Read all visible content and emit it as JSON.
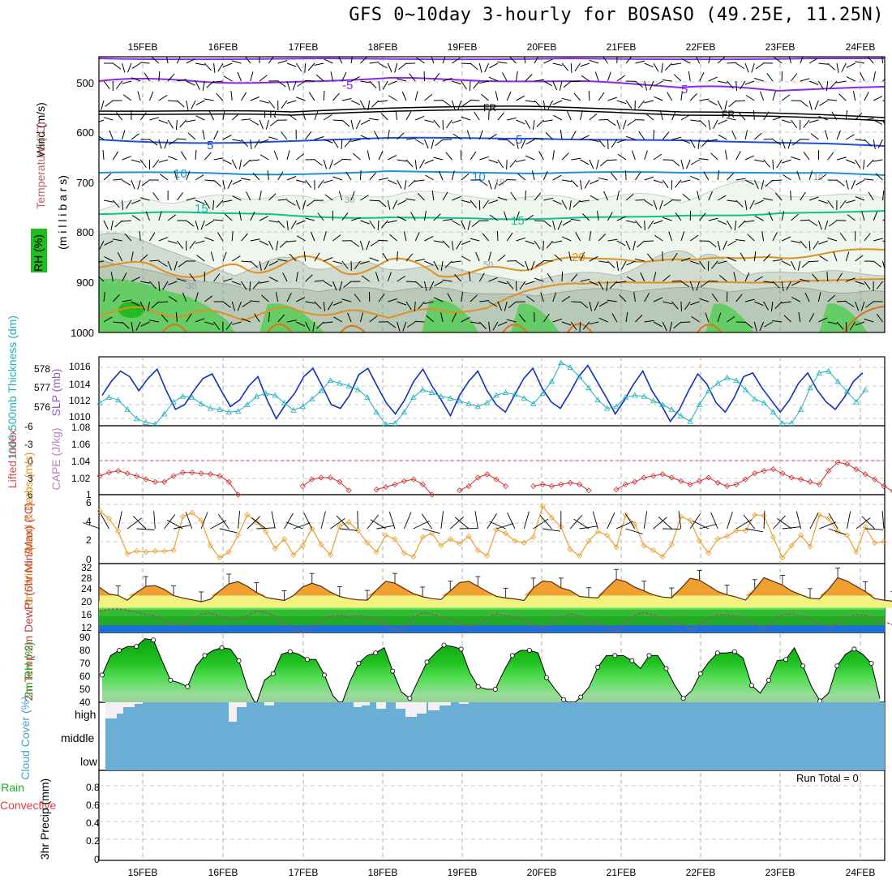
{
  "title": "GFS 0~10day 3-hourly for BOSASO (49.25E, 11.25N)",
  "colors": {
    "temp_purple": "#8a2be2",
    "temp_black": "#000000",
    "temp_blue": "#1f4fd8",
    "temp_lightblue": "#1e90d8",
    "temp_teal": "#10c090",
    "temp_orange": "#e09020",
    "rh_light": "#e6f2e6",
    "rh_gray": "#b8c8b8",
    "rh_green": "#66cc66",
    "slp_blue": "#1030c0",
    "thick_cyan": "#20b0c0",
    "cape_red": "#d03030",
    "wind_orange": "#e8a030",
    "cloud_blue": "#6aaed6",
    "rh2m_green": "#22bb22"
  },
  "chart_data": [
    {
      "type": "contour",
      "name": "upper-air",
      "days": [
        "15FEB",
        "16FEB",
        "17FEB",
        "18FEB",
        "19FEB",
        "20FEB",
        "21FEB",
        "22FEB",
        "23FEB",
        "24FEB"
      ],
      "ylabel_parts": [
        "Wind (m/s)",
        "Temperature (°C)",
        "RH (%)",
        "(m i l l i b a r s)"
      ],
      "y_ticks": [
        500,
        600,
        700,
        800,
        900,
        1000
      ],
      "ylim": [
        450,
        1000
      ],
      "contour_labels": [
        "-5",
        "5",
        "FR",
        "FR",
        "FR",
        "5",
        "5",
        "10",
        "10",
        "15",
        "15",
        "20",
        "30",
        "10",
        "10",
        "30",
        "50"
      ]
    },
    {
      "type": "line",
      "name": "slp-thickness",
      "ylabel_left": "1000-500mb Thickness (dm)",
      "ylabel_right": "SLP (mb)",
      "left_ticks": [
        "578",
        "577",
        "576"
      ],
      "right_ticks": [
        "1016",
        "1014",
        "1012",
        "1010"
      ],
      "series": [
        {
          "name": "SLP (mb)",
          "values": [
            1013,
            1014.5,
            1015.6,
            1015,
            1013.5,
            1014.8,
            1015.8,
            1013.5,
            1011.5,
            1012,
            1013.5,
            1014.8,
            1015.3,
            1013.5,
            1011.8,
            1012.5,
            1014,
            1015,
            1012.5,
            1010.5,
            1012,
            1013.2,
            1015,
            1015.9,
            1014,
            1012,
            1011.6,
            1013,
            1015.2,
            1015.9,
            1014,
            1012.2,
            1011,
            1012.5,
            1014.5,
            1015.8,
            1014,
            1012.5,
            1010.8,
            1013,
            1014.5,
            1015.6,
            1013.5,
            1012,
            1011.2,
            1013,
            1014.8,
            1015.9,
            1013.8,
            1012.3,
            1011.6,
            1013.2,
            1015,
            1016.2,
            1014.5,
            1012.8,
            1011,
            1012.5,
            1014.2,
            1015.6,
            1013.5,
            1012,
            1010.2,
            1011.5,
            1013.5,
            1015.3,
            1014.2,
            1012.2,
            1011.2,
            1012.8,
            1015,
            1015.4,
            1013.8,
            1012.5,
            1011.2,
            1012.5,
            1014.3,
            1015.4,
            1013.6,
            1012.3,
            1011.5,
            1012.8,
            1014.5,
            1015.4
          ]
        },
        {
          "name": "1000-500mb Thickness (dm)",
          "values": [
            1012.2,
            1012.8,
            1012.5,
            1011.5,
            1010.5,
            1010.1,
            1009.9,
            1011.0,
            1012.3,
            1012.9,
            1012.8,
            1012.1,
            1011.6,
            1011.5,
            1011.2,
            1011.3,
            1012.0,
            1012.9,
            1013.2,
            1013.0,
            1012.2,
            1011.4,
            1011.8,
            1012.6,
            1013.5,
            1014.6,
            1014.3,
            1014.0,
            1013.6,
            1012.8,
            1011.2,
            1009.9,
            1010.0,
            1011.2,
            1012.8,
            1013.6,
            1013.3,
            1012.9,
            1012.7,
            1012.4,
            1012.1,
            1011.8,
            1012.2,
            1013.0,
            1013.3,
            1013.1,
            1012.7,
            1012.1,
            1013.2,
            1014.5,
            1016.5,
            1016.0,
            1015.0,
            1013.8,
            1012.5,
            1011.6,
            1011.8,
            1012.8,
            1013.0,
            1012.9,
            1012.4,
            1012.0,
            1011.5,
            1010.8,
            1010.2,
            1012.0,
            1013.5,
            1014.3,
            1014.9,
            1014.6,
            1013.6,
            1012.6,
            1012.2,
            1011.2,
            1010.0,
            1010.0,
            1011.5,
            1013.8,
            1015.4,
            1015.6,
            1014.5,
            1013.4,
            1012.3,
            1013.6
          ]
        }
      ]
    },
    {
      "type": "line",
      "name": "lifted-cape",
      "ylabel_left": "Lifted Index",
      "ylabel_right": "CAPE (J/kg)",
      "left_ticks": [
        "-6",
        "-3",
        "0",
        "3",
        "6"
      ],
      "right_ticks": [
        "1.08",
        "1.06",
        "1.04",
        "1.02",
        "1"
      ],
      "series": [
        {
          "name": "Lifted Index",
          "values": [
            1.022,
            1.026,
            1.028,
            1.025,
            1.022,
            1.018,
            1.015,
            1.015,
            1.022,
            1.026,
            1.026,
            1.025,
            1.024,
            1.022,
            1.015,
            1.0,
            null,
            null,
            null,
            null,
            null,
            null,
            1.01,
            1.018,
            1.02,
            1.02,
            1.015,
            1.005,
            null,
            null,
            1.006,
            1.009,
            1.012,
            1.016,
            1.018,
            1.012,
            1.0,
            null,
            null,
            1.005,
            1.01,
            1.02,
            1.024,
            1.018,
            1.01,
            null,
            null,
            1.01,
            1.012,
            1.01,
            1.012,
            1.014,
            1.012,
            1.005,
            null,
            null,
            1.006,
            1.012,
            1.015,
            1.02,
            1.022,
            1.024,
            1.02,
            1.016,
            1.012,
            1.016,
            1.02,
            1.014,
            1.01,
            1.012,
            1.018,
            1.025,
            1.028,
            1.03,
            1.025,
            1.02,
            1.018,
            1.015,
            1.012,
            1.028,
            1.038,
            1.036,
            1.03,
            1.024,
            1.018,
            1.01,
            1.004,
            1.002,
            1.004
          ]
        }
      ]
    },
    {
      "type": "line",
      "name": "wind10m",
      "ylabel": "10m Wind Speed & Barbs (m/s)",
      "y_ticks": [
        "6",
        "4",
        "2",
        "0"
      ],
      "series": [
        {
          "name": "10m Wind Speed (m/s)",
          "values": [
            5.2,
            4.4,
            3.0,
            0.6,
            0.9,
            0.8,
            0.9,
            0.9,
            1.0,
            4.6,
            5.0,
            4.2,
            1.5,
            0.2,
            0.8,
            2.6,
            4.8,
            4.0,
            3.0,
            1.2,
            2.2,
            0.5,
            1.5,
            3.3,
            1.6,
            0.5,
            3.6,
            4.0,
            3.1,
            1.8,
            0.8,
            2.6,
            2.2,
            0.7,
            0.3,
            2.4,
            2.8,
            1.5,
            2.2,
            1.7,
            2.5,
            1.0,
            0.4,
            3.2,
            2.8,
            2.0,
            1.8,
            2.4,
            5.7,
            4.5,
            3.5,
            1.1,
            0.4,
            2.0,
            3.0,
            2.6,
            1.3,
            4.8,
            3.8,
            1.5,
            1.0,
            0.3,
            1.6,
            4.6,
            4.2,
            2.0,
            0.7,
            2.2,
            2.5,
            3.1,
            3.1,
            4.8,
            4.7,
            2.4,
            0.2,
            1.5,
            2.6,
            1.4,
            4.8,
            4.4,
            3.0,
            2.6,
            0.8,
            3.5,
            1.8,
            1.9
          ]
        }
      ]
    },
    {
      "type": "area",
      "name": "temp2m",
      "ylabel": "2m Temp 2m DewPt (6hr Min/Max) (°C)",
      "y_ticks": [
        "32",
        "28",
        "24",
        "20",
        "16",
        "12"
      ],
      "series": [
        {
          "name": "2m Temp",
          "values": [
            26.6,
            24.5,
            24,
            22.5,
            25,
            27,
            27.2,
            26,
            24,
            23.2,
            22.6,
            22,
            22.8,
            25.5,
            27.8,
            28.5,
            27,
            25,
            23.4,
            22.9,
            22.4,
            24,
            26.8,
            28,
            27,
            25.1,
            23.7,
            23,
            22.6,
            22.5,
            25.8,
            28.6,
            28,
            26.3,
            24.6,
            23.6,
            23,
            22.7,
            25.5,
            28.2,
            28.6,
            27,
            25.3,
            23.7,
            23.2,
            22.9,
            22.4,
            26.5,
            28.7,
            28.4,
            26.5,
            25.6,
            23.7,
            23.4,
            23.2,
            26.5,
            29.3,
            28.5,
            26.7,
            25.5,
            24.2,
            23.5,
            23.3,
            26.3,
            29.6,
            29,
            27.2,
            25.3,
            24.2,
            23.5,
            22.5,
            26,
            29.8,
            28.6,
            27.4,
            25.5,
            24.2,
            23.1,
            22.9,
            26,
            29.8,
            28.7,
            27,
            25.3,
            23,
            22.5,
            22.1,
            27.2
          ]
        },
        {
          "name": "2m DewPt",
          "values": [
            19,
            19.5,
            19.6,
            19.3,
            18.6,
            17.9,
            17.2,
            15.8,
            14.8,
            14.6,
            15.8,
            18,
            18.3,
            17.2,
            16.5,
            16,
            17.5,
            19,
            18.5,
            17.3,
            15,
            13.3,
            11.8,
            13.8,
            16,
            17.2,
            17.5,
            17,
            17.4,
            17,
            16.2,
            15,
            12.8,
            13.5,
            16.7,
            18.5,
            18,
            17,
            16.2,
            15,
            14,
            14.5,
            16.6,
            18,
            17.5,
            17,
            16,
            14.5,
            13.5,
            15.5,
            16.9,
            18,
            17.4,
            15.8,
            15,
            13.7,
            12.4,
            15.5,
            17.6,
            18.5,
            17.6,
            16.7,
            15.5,
            15,
            13,
            14.6,
            16.6,
            17.8,
            17.6,
            17.2,
            16.3,
            15,
            13,
            15.5,
            17.8,
            18.2,
            17.3,
            16.5,
            15,
            14,
            14.8,
            16.8,
            17.8,
            17.5,
            16.2,
            15.5,
            14.5,
            13
          ]
        }
      ]
    },
    {
      "type": "area",
      "name": "rh2m",
      "ylabel": "2m RH (%)",
      "y_ticks": [
        "90",
        "80",
        "70",
        "60",
        "50",
        "40"
      ],
      "series": [
        {
          "name": "2m RH",
          "values": [
            61,
            76,
            80,
            83,
            83,
            89,
            88,
            72,
            57,
            55,
            52,
            68,
            76,
            80,
            82,
            81,
            72,
            51,
            38,
            57,
            62,
            77,
            79,
            77,
            73,
            73,
            61,
            45,
            38,
            56,
            70,
            76,
            78,
            82,
            64,
            48,
            43,
            57,
            71,
            78,
            84,
            83,
            81,
            63,
            52,
            50,
            50,
            64,
            76,
            80,
            80,
            78,
            59,
            50,
            42,
            38,
            44,
            52,
            67,
            76,
            76,
            76,
            72,
            66,
            76,
            76,
            66,
            53,
            43,
            49,
            62,
            71,
            78,
            78,
            79,
            74,
            53,
            47,
            57,
            72,
            73,
            82,
            68,
            52,
            41,
            47,
            68,
            77,
            81,
            77,
            70,
            43
          ]
        }
      ]
    },
    {
      "type": "bar",
      "name": "cloud-cover",
      "ylabel": "Cloud Cover (%)",
      "levels": [
        "high",
        "middle",
        "low"
      ]
    },
    {
      "type": "bar",
      "name": "precip",
      "ylabel_parts": [
        "Total / Rain",
        "Convective",
        "3hr Precip (mm)"
      ],
      "y_ticks": [
        "0.8",
        "0.6",
        "0.4",
        "0.2",
        "0"
      ],
      "ylim": [
        0,
        1
      ],
      "run_total_label": "Run Total = 0"
    }
  ]
}
